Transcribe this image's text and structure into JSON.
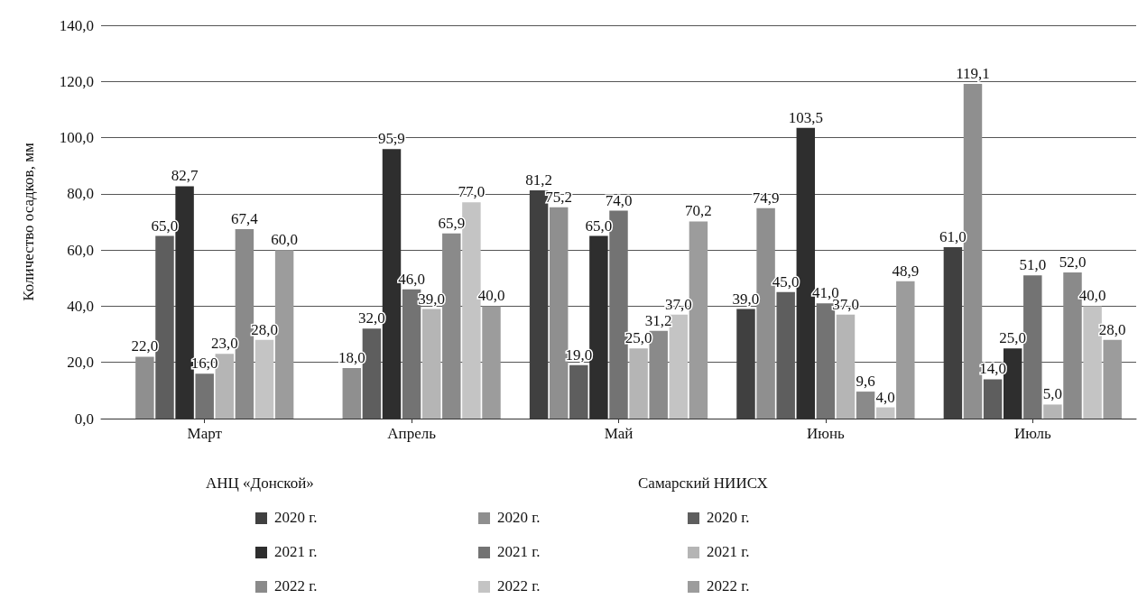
{
  "chart_data": {
    "type": "bar",
    "ylabel": "Количество осадков, мм",
    "categories": [
      "Март",
      "Апрель",
      "Май",
      "Июнь",
      "Июль"
    ],
    "series": [
      {
        "name": "2020 г.",
        "color": "#404040",
        "values": [
          null,
          null,
          81.2,
          39.0,
          61.0
        ],
        "value_labels": [
          null,
          null,
          "81,2",
          "39,0",
          "61,0"
        ]
      },
      {
        "name": "2020 г.",
        "color": "#8f8f8f",
        "values": [
          22.0,
          18.0,
          75.2,
          74.9,
          119.1
        ],
        "value_labels": [
          "22,0",
          "18,0",
          "75,2",
          "74,9",
          "119,1"
        ]
      },
      {
        "name": "2020 г.",
        "color": "#5e5e5e",
        "values": [
          65.0,
          32.0,
          19.0,
          45.0,
          14.0
        ],
        "value_labels": [
          "65,0",
          "32,0",
          "19,0",
          "45,0",
          "14,0"
        ]
      },
      {
        "name": "2021 г.",
        "color": "#2e2e2e",
        "values": [
          82.7,
          95.9,
          65.0,
          103.5,
          25.0
        ],
        "value_labels": [
          "82,7",
          "95,9",
          "65,0",
          "103,5",
          "25,0"
        ]
      },
      {
        "name": "2021 г.",
        "color": "#737373",
        "values": [
          16.0,
          46.0,
          74.0,
          41.0,
          51.0
        ],
        "value_labels": [
          "16,0",
          "46,0",
          "74,0",
          "41,0",
          "51,0"
        ]
      },
      {
        "name": "2021 г.",
        "color": "#b5b5b5",
        "values": [
          23.0,
          39.0,
          25.0,
          37.0,
          5.0
        ],
        "value_labels": [
          "23,0",
          "39,0",
          "25,0",
          "37,0",
          "5,0"
        ]
      },
      {
        "name": "2022 г.",
        "color": "#8a8a8a",
        "values": [
          67.4,
          65.9,
          31.2,
          9.6,
          52.0
        ],
        "value_labels": [
          "67,4",
          "65,9",
          "31,2",
          "9,6",
          "52,0"
        ]
      },
      {
        "name": "2022 г.",
        "color": "#c4c4c4",
        "values": [
          28.0,
          77.0,
          37.0,
          4.0,
          40.0
        ],
        "value_labels": [
          "28,0",
          "77,0",
          "37,0",
          "4,0",
          "40,0"
        ]
      },
      {
        "name": "2022 г.",
        "color": "#9c9c9c",
        "values": [
          60.0,
          40.0,
          70.2,
          48.9,
          28.0
        ],
        "value_labels": [
          "60,0",
          "40,0",
          "70,2",
          "48,9",
          "28,0"
        ]
      }
    ],
    "ylim": [
      0,
      140
    ],
    "yticks": [
      {
        "value": 0,
        "label": "0,0"
      },
      {
        "value": 20,
        "label": "20,0"
      },
      {
        "value": 40,
        "label": "40,0"
      },
      {
        "value": 60,
        "label": "60,0"
      },
      {
        "value": 80,
        "label": "80,0"
      },
      {
        "value": 100,
        "label": "100,0"
      },
      {
        "value": 120,
        "label": "120,0"
      },
      {
        "value": 140,
        "label": "140,0"
      }
    ],
    "grid": "y",
    "legend": "bottom",
    "annotations": [
      "АНЦ «Донской»",
      null,
      "Самарский НИИСХ"
    ]
  }
}
